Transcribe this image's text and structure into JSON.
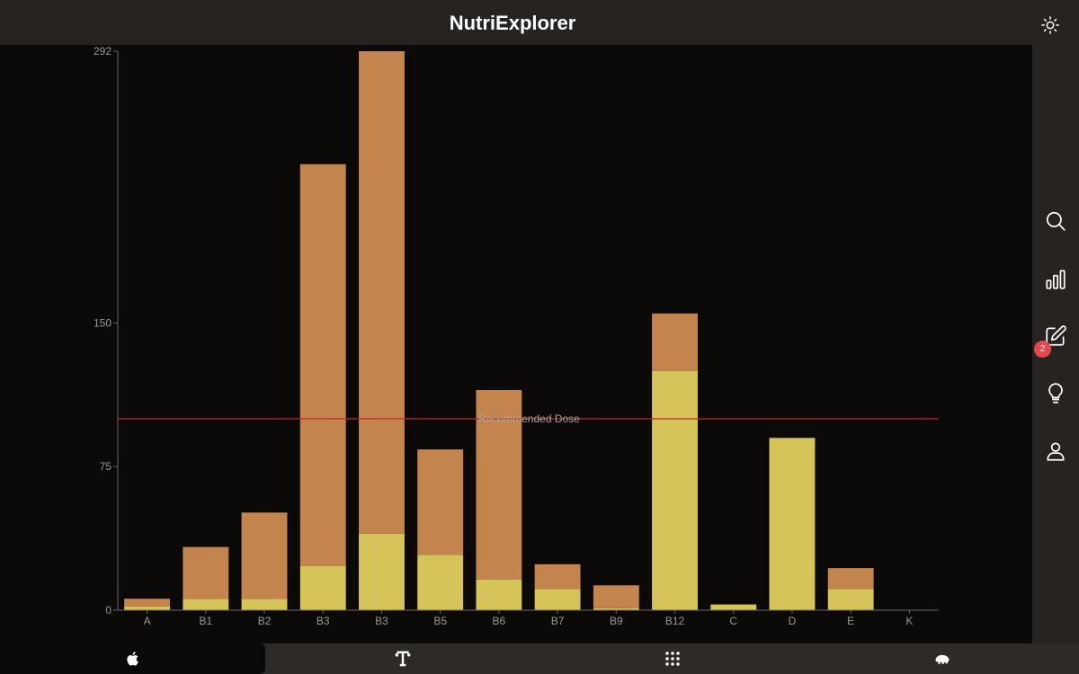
{
  "app": {
    "title": "NutriExplorer"
  },
  "header": {
    "theme_icon": "sun-icon"
  },
  "sidebar": {
    "items": [
      {
        "name": "search",
        "icon": "search-icon"
      },
      {
        "name": "stats",
        "icon": "bar-chart-icon"
      },
      {
        "name": "edit",
        "icon": "edit-icon",
        "badge": "2"
      },
      {
        "name": "tips",
        "icon": "lightbulb-icon"
      },
      {
        "name": "profile",
        "icon": "user-icon"
      }
    ]
  },
  "tabs": [
    {
      "name": "nutrition",
      "icon": "apple-icon",
      "active": true
    },
    {
      "name": "fitness",
      "icon": "dumbbell-icon",
      "active": false
    },
    {
      "name": "apps",
      "icon": "grid-icon",
      "active": false
    },
    {
      "name": "brain",
      "icon": "brain-icon",
      "active": false
    }
  ],
  "chart_data": {
    "type": "bar",
    "stacked": true,
    "categories": [
      "A",
      "B1",
      "B2",
      "B3",
      "B3",
      "B5",
      "B6",
      "B7",
      "B9",
      "B12",
      "C",
      "D",
      "E",
      "K"
    ],
    "series": [
      {
        "color": "#d4c45a",
        "values": [
          2,
          6,
          6,
          23,
          40,
          29,
          16,
          11,
          1,
          125,
          3,
          90,
          11,
          0
        ]
      },
      {
        "color": "#c4844e",
        "values": [
          4,
          27,
          45,
          210,
          252,
          55,
          99,
          13,
          12,
          30,
          0,
          0,
          11,
          0
        ]
      }
    ],
    "yticks": [
      0,
      75,
      150,
      292
    ],
    "ylim": [
      0,
      292
    ],
    "reference_line": {
      "value": 100,
      "label": "Recommended Dose",
      "color": "#c0262a"
    },
    "grid": false,
    "legend": "none"
  }
}
